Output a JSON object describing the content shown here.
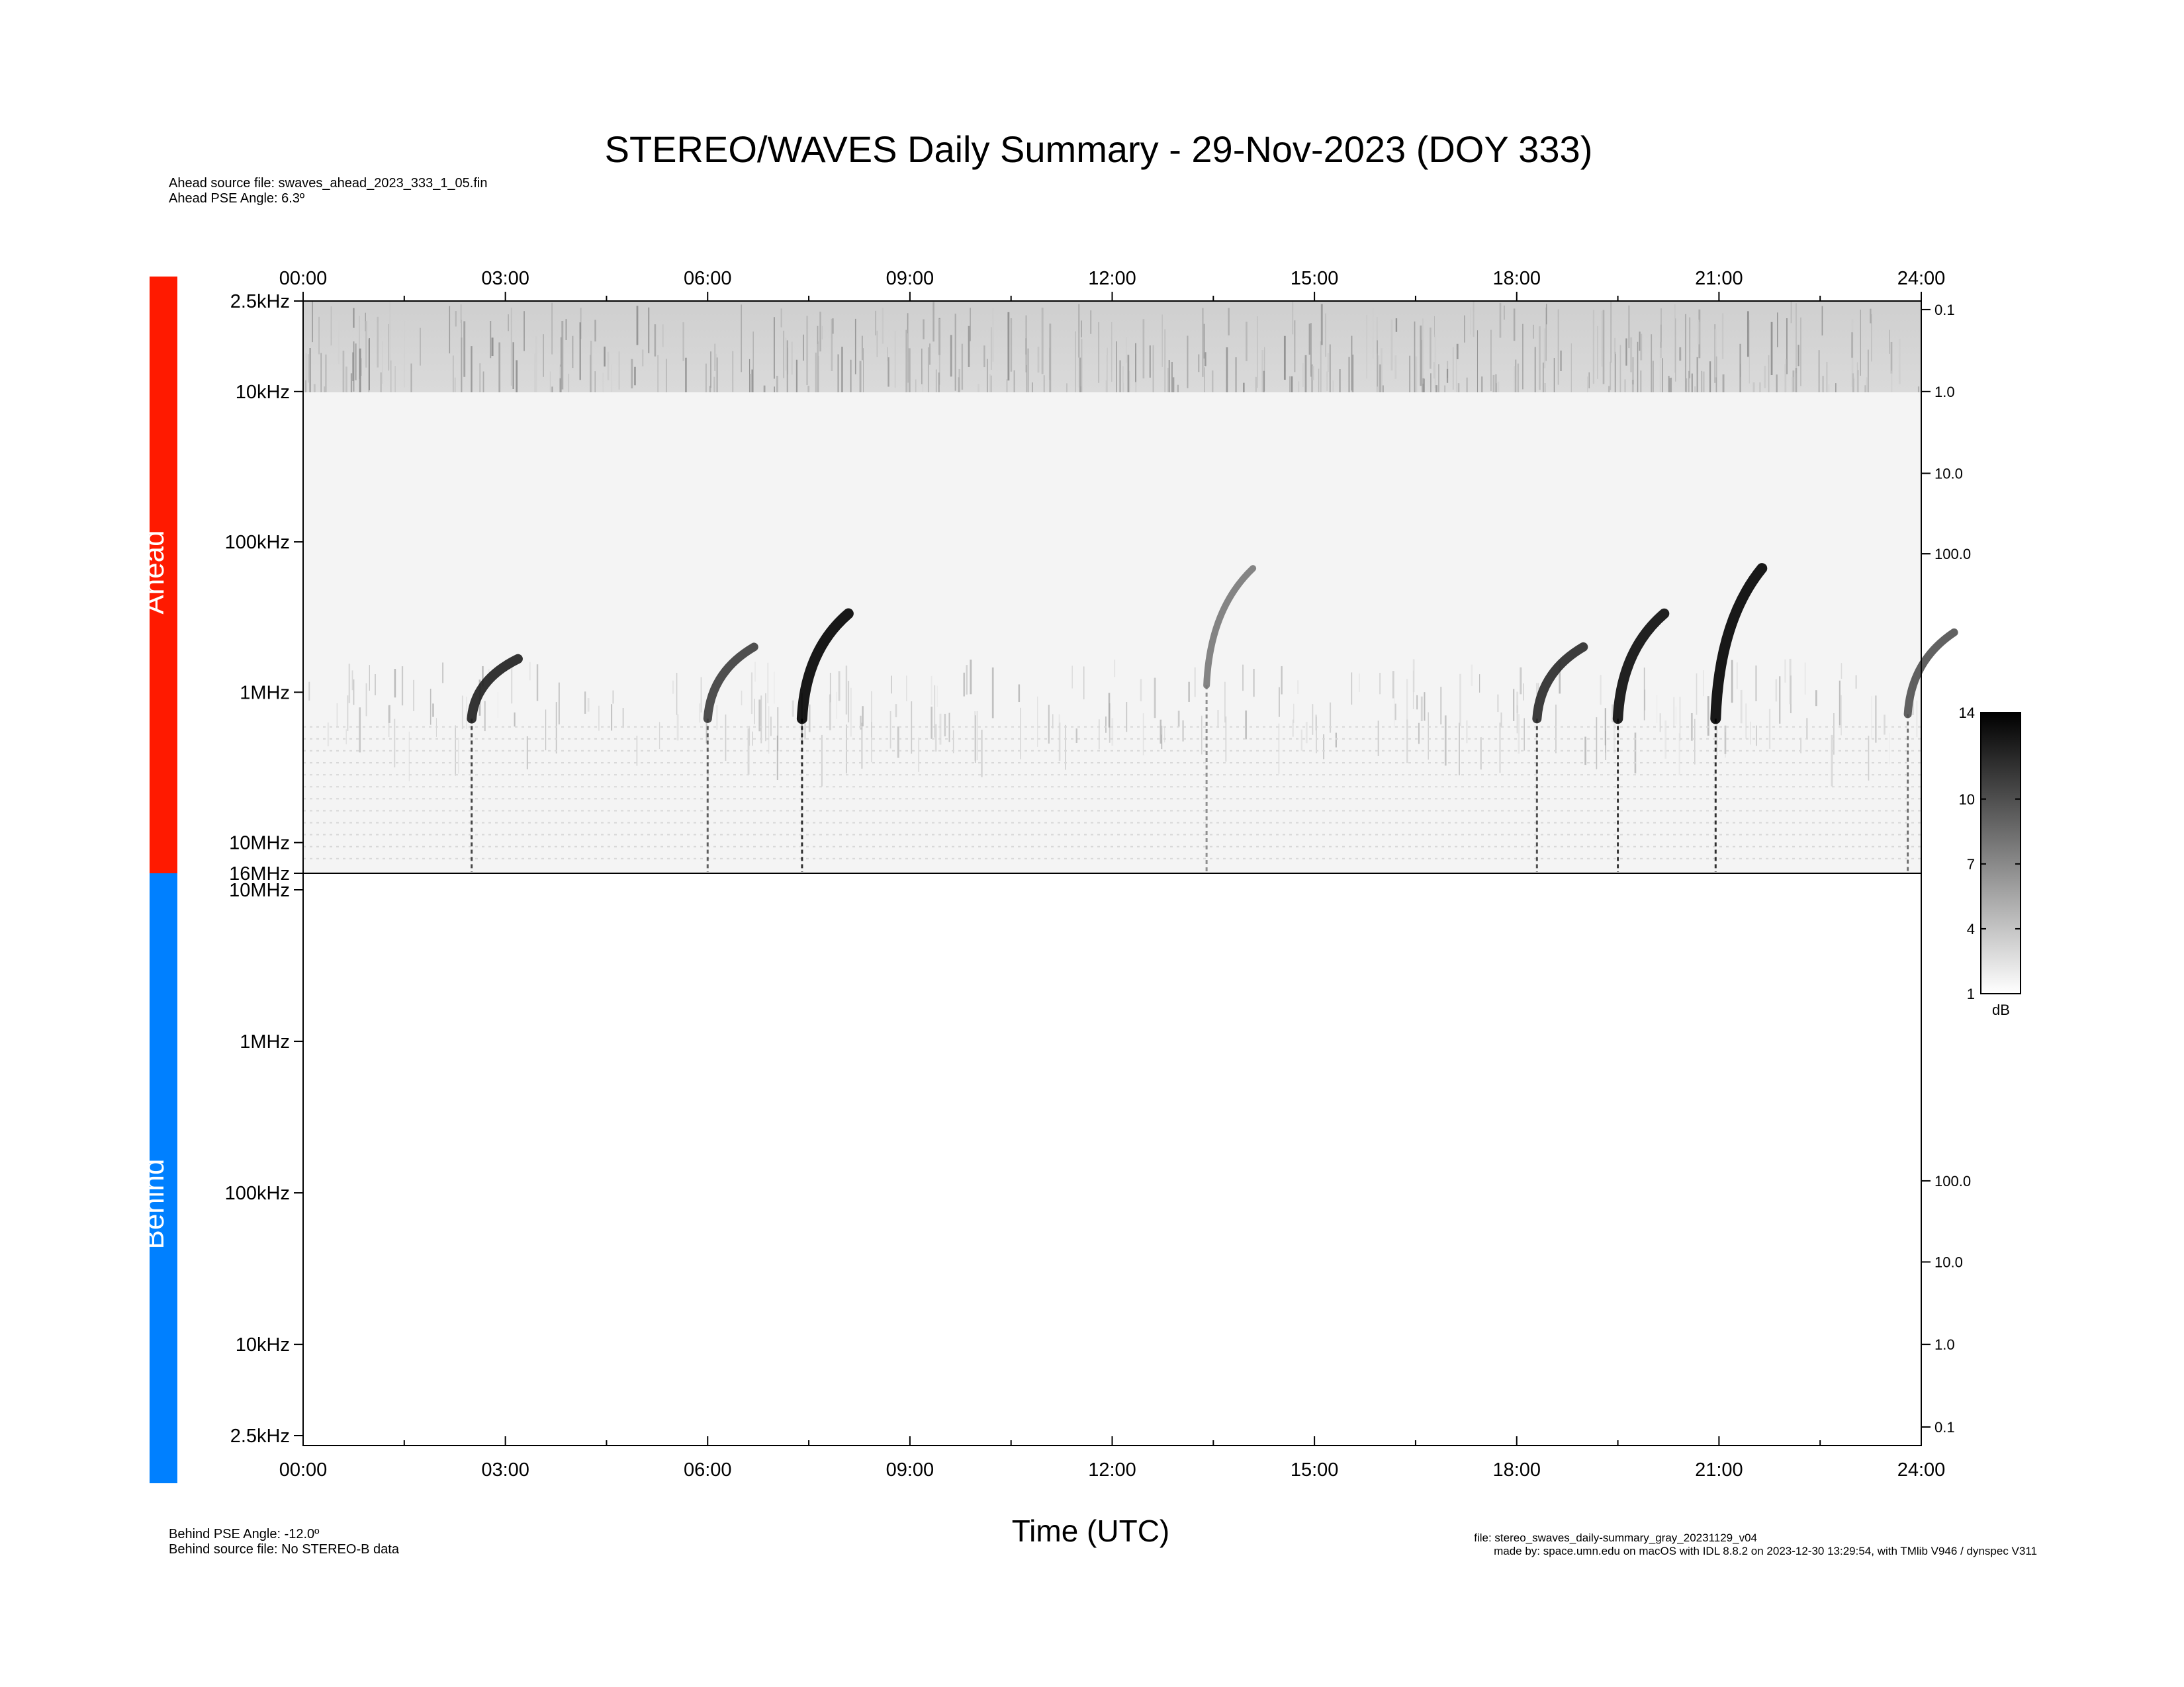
{
  "title": "STEREO/WAVES Daily Summary - 29-Nov-2023 (DOY 333)",
  "header": {
    "ahead_source_file": "Ahead source file: swaves_ahead_2023_333_1_05.fin",
    "ahead_pse_angle": "Ahead PSE Angle:    6.3º"
  },
  "footer": {
    "behind_pse_angle": "Behind PSE Angle:  -12.0º",
    "behind_source_file": "Behind source file: No STEREO-B data",
    "file": "file: stereo_swaves_daily-summary_gray_20231129_v04",
    "made_by": "made by: space.umn.edu on macOS with IDL 8.8.2 on 2023-12-30 13:29:54, with TMlib V946 / dynspec V311"
  },
  "side_labels": {
    "ahead": "Ahead",
    "behind": "Behind"
  },
  "colors": {
    "ahead": "#ff1a00",
    "behind": "#0080ff"
  },
  "chart_data": {
    "type": "heatmap",
    "xlabel": "Time (UTC)",
    "xlim": [
      0,
      24
    ],
    "x_ticks": [
      "00:00",
      "03:00",
      "06:00",
      "09:00",
      "12:00",
      "15:00",
      "18:00",
      "21:00",
      "24:00"
    ],
    "panels": [
      {
        "name": "Ahead",
        "freq_ticks": [
          "2.5kHz",
          "10kHz",
          "100kHz",
          "1MHz",
          "10MHz",
          "16MHz"
        ],
        "freq_values_hz": [
          2500,
          10000,
          100000,
          1000000,
          10000000,
          16000000
        ],
        "right_ticks": [
          "0.1",
          "1.0",
          "10.0",
          "100.0"
        ],
        "bursts": [
          {
            "t": 2.5,
            "f_start_khz": 600,
            "f_end_khz": 1500,
            "intensity": 0.85
          },
          {
            "t": 6.0,
            "f_start_khz": 500,
            "f_end_khz": 1500,
            "intensity": 0.7
          },
          {
            "t": 7.4,
            "f_start_khz": 300,
            "f_end_khz": 1500,
            "intensity": 1.0
          },
          {
            "t": 13.4,
            "f_start_khz": 150,
            "f_end_khz": 900,
            "intensity": 0.4
          },
          {
            "t": 18.3,
            "f_start_khz": 500,
            "f_end_khz": 1500,
            "intensity": 0.8
          },
          {
            "t": 19.5,
            "f_start_khz": 300,
            "f_end_khz": 1500,
            "intensity": 0.95
          },
          {
            "t": 20.95,
            "f_start_khz": 150,
            "f_end_khz": 1500,
            "intensity": 1.0
          },
          {
            "t": 23.8,
            "f_start_khz": 400,
            "f_end_khz": 1400,
            "intensity": 0.6
          }
        ]
      },
      {
        "name": "Behind",
        "freq_ticks": [
          "10MHz",
          "1MHz",
          "100kHz",
          "10kHz",
          "2.5kHz"
        ],
        "freq_values_hz": [
          10000000,
          1000000,
          100000,
          10000,
          2500
        ],
        "right_ticks": [
          "100.0",
          "10.0",
          "1.0",
          "0.1"
        ],
        "bursts": []
      }
    ],
    "colorbar": {
      "ticks": [
        "14",
        "10",
        "7",
        "4",
        "1"
      ],
      "values": [
        14,
        10,
        7,
        4,
        1
      ],
      "unit": "dB",
      "range": [
        1,
        14
      ]
    }
  }
}
